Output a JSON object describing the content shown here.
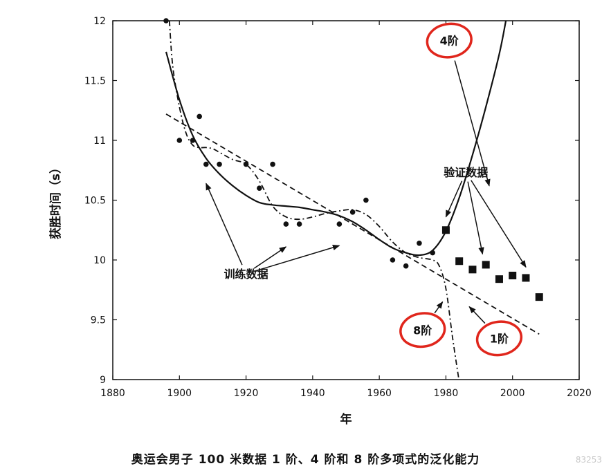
{
  "chart_data": {
    "type": "scatter",
    "title": "",
    "xlabel": "年",
    "ylabel": "获胜时间（s）",
    "xlim": [
      1880,
      2020
    ],
    "ylim": [
      9,
      12
    ],
    "xticks": [
      "1880",
      "1900",
      "1920",
      "1940",
      "1960",
      "1980",
      "2000",
      "2020"
    ],
    "yticks": [
      "12",
      "11.5",
      "11",
      "10.5",
      "10",
      "9.5",
      "9"
    ],
    "grid": false,
    "series": [
      {
        "name": "训练数据",
        "marker": "circle",
        "x": [
          1896,
          1900,
          1904,
          1906,
          1908,
          1912,
          1920,
          1924,
          1928,
          1932,
          1936,
          1948,
          1952,
          1956,
          1964,
          1968,
          1972,
          1976
        ],
        "y": [
          12.0,
          11.0,
          11.0,
          11.2,
          10.8,
          10.8,
          10.8,
          10.6,
          10.8,
          10.3,
          10.3,
          10.3,
          10.4,
          10.5,
          10.0,
          9.95,
          10.14,
          10.06
        ]
      },
      {
        "name": "验证数据",
        "marker": "square",
        "x": [
          1980,
          1984,
          1988,
          1992,
          1996,
          2000,
          2004,
          2008
        ],
        "y": [
          10.25,
          9.99,
          9.92,
          9.96,
          9.84,
          9.87,
          9.85,
          9.69
        ]
      },
      {
        "name": "1阶",
        "style": "dashed",
        "x": [
          1896,
          2008
        ],
        "y": [
          11.22,
          9.38
        ]
      },
      {
        "name": "4阶",
        "style": "solid",
        "x": [
          1896,
          1900,
          1904,
          1908,
          1912,
          1916,
          1920,
          1924,
          1928,
          1932,
          1936,
          1940,
          1944,
          1948,
          1952,
          1956,
          1960,
          1964,
          1968,
          1972,
          1976,
          1980,
          1984,
          1988,
          1992,
          1996,
          1998
        ],
        "y": [
          11.74,
          11.34,
          11.04,
          10.85,
          10.72,
          10.62,
          10.54,
          10.48,
          10.46,
          10.45,
          10.44,
          10.42,
          10.4,
          10.37,
          10.32,
          10.25,
          10.17,
          10.1,
          10.06,
          10.04,
          10.08,
          10.24,
          10.52,
          10.88,
          11.28,
          11.72,
          12.0
        ]
      },
      {
        "name": "8阶",
        "style": "dashdot",
        "x": [
          1897,
          1898,
          1900,
          1902,
          1904,
          1906,
          1908,
          1910,
          1912,
          1916,
          1920,
          1924,
          1928,
          1932,
          1936,
          1940,
          1944,
          1948,
          1952,
          1956,
          1960,
          1964,
          1968,
          1972,
          1976,
          1978,
          1980,
          1982,
          1984
        ],
        "y": [
          12.0,
          11.62,
          11.28,
          11.06,
          10.96,
          10.94,
          10.94,
          10.93,
          10.9,
          10.84,
          10.8,
          10.66,
          10.45,
          10.36,
          10.34,
          10.36,
          10.39,
          10.41,
          10.42,
          10.38,
          10.28,
          10.15,
          10.06,
          10.02,
          10.0,
          9.95,
          9.76,
          9.35,
          8.98
        ]
      }
    ],
    "annotations": [
      {
        "text": "4阶",
        "x": 1981,
        "y": 11.8,
        "circled": true,
        "arrow_to": [
          1993,
          10.62
        ]
      },
      {
        "text": "验证数据",
        "x": 1986,
        "y": 10.7,
        "circled": false,
        "arrows_to": [
          [
            1980,
            10.36
          ],
          [
            1991,
            10.05
          ],
          [
            2004,
            9.94
          ]
        ]
      },
      {
        "text": "训练数据",
        "x": 1920,
        "y": 9.85,
        "circled": false,
        "arrows_to": [
          [
            1908,
            10.64
          ],
          [
            1932,
            10.11
          ],
          [
            1948,
            10.12
          ]
        ]
      },
      {
        "text": "8阶",
        "x": 1973,
        "y": 9.38,
        "circled": true,
        "arrow_to": [
          1979,
          9.65
        ]
      },
      {
        "text": "1阶",
        "x": 1996,
        "y": 9.31,
        "circled": true,
        "arrow_to": [
          1987,
          9.61
        ]
      }
    ]
  },
  "caption": "奥运会男子 100 米数据 1 阶、4 阶和 8 阶多项式的泛化能力",
  "watermark": "83253",
  "colors": {
    "ink": "#111111",
    "circle_highlight": "#e0261c",
    "watermark": "#c9c9c9"
  }
}
